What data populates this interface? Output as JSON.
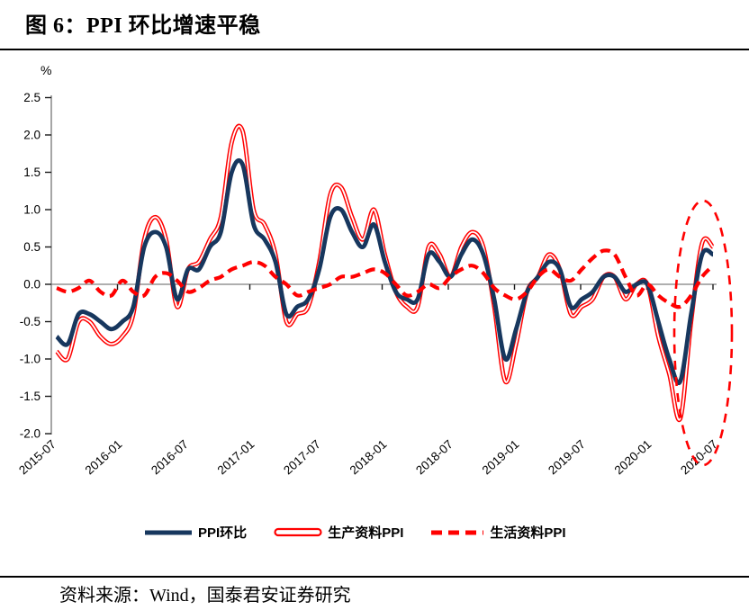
{
  "page": {
    "title": "图 6：PPI 环比增速平稳",
    "source": "资料来源：Wind，国泰君安证券研究"
  },
  "colors": {
    "ppi_line": "#17375E",
    "producer_line": "#FF0000",
    "consumer_line": "#FF0000",
    "axis": "#7F7F7F",
    "tick": "#1a1a1a",
    "text": "#000000",
    "highlight": "#FF0000"
  },
  "chart_data": {
    "type": "line",
    "title": "图 6：PPI 环比增速平稳",
    "unit_label": "%",
    "ylim": [
      -2.0,
      2.5
    ],
    "y_ticks": [
      "2.5",
      "2.0",
      "1.5",
      "1.0",
      "0.5",
      "0.0",
      "-0.5",
      "-1.0",
      "-1.5",
      "-2.0"
    ],
    "x_tick_labels": [
      "2015-07",
      "2016-01",
      "2016-07",
      "2017-01",
      "2017-07",
      "2018-01",
      "2018-07",
      "2019-01",
      "2019-07",
      "2020-01",
      "2020-07"
    ],
    "grid": "zero-line-only",
    "legend_position": "bottom",
    "x": [
      "2015-07",
      "2015-08",
      "2015-09",
      "2015-10",
      "2015-11",
      "2015-12",
      "2016-01",
      "2016-02",
      "2016-03",
      "2016-04",
      "2016-05",
      "2016-06",
      "2016-07",
      "2016-08",
      "2016-09",
      "2016-10",
      "2016-11",
      "2016-12",
      "2017-01",
      "2017-02",
      "2017-03",
      "2017-04",
      "2017-05",
      "2017-06",
      "2017-07",
      "2017-08",
      "2017-09",
      "2017-10",
      "2017-11",
      "2017-12",
      "2018-01",
      "2018-02",
      "2018-03",
      "2018-04",
      "2018-05",
      "2018-06",
      "2018-07",
      "2018-08",
      "2018-09",
      "2018-10",
      "2018-11",
      "2018-12",
      "2019-01",
      "2019-02",
      "2019-03",
      "2019-04",
      "2019-05",
      "2019-06",
      "2019-07",
      "2019-08",
      "2019-09",
      "2019-10",
      "2019-11",
      "2019-12",
      "2020-01",
      "2020-02",
      "2020-03",
      "2020-04",
      "2020-05",
      "2020-06",
      "2020-07"
    ],
    "series": [
      {
        "name": "PPI环比",
        "style": "solid-thick",
        "color": "#17375E",
        "values": [
          -0.7,
          -0.8,
          -0.4,
          -0.4,
          -0.5,
          -0.6,
          -0.5,
          -0.3,
          0.5,
          0.7,
          0.5,
          -0.2,
          0.2,
          0.2,
          0.5,
          0.7,
          1.5,
          1.6,
          0.8,
          0.6,
          0.3,
          -0.4,
          -0.3,
          -0.2,
          0.2,
          0.9,
          1.0,
          0.7,
          0.5,
          0.8,
          0.3,
          -0.1,
          -0.2,
          -0.2,
          0.4,
          0.3,
          0.1,
          0.4,
          0.6,
          0.4,
          -0.2,
          -1.0,
          -0.6,
          -0.1,
          0.1,
          0.3,
          0.2,
          -0.3,
          -0.2,
          -0.1,
          0.1,
          0.1,
          -0.1,
          0.0,
          0.0,
          -0.5,
          -1.0,
          -1.3,
          -0.4,
          0.4,
          0.4
        ]
      },
      {
        "name": "生产资料PPI",
        "style": "double-hollow",
        "color": "#FF0000",
        "values": [
          -0.9,
          -1.0,
          -0.5,
          -0.5,
          -0.7,
          -0.8,
          -0.7,
          -0.4,
          0.6,
          0.9,
          0.6,
          -0.3,
          0.2,
          0.3,
          0.6,
          0.9,
          1.9,
          2.05,
          1.0,
          0.8,
          0.4,
          -0.5,
          -0.4,
          -0.3,
          0.3,
          1.2,
          1.3,
          0.9,
          0.6,
          1.0,
          0.4,
          -0.1,
          -0.3,
          -0.3,
          0.5,
          0.4,
          0.1,
          0.5,
          0.7,
          0.5,
          -0.3,
          -1.3,
          -0.8,
          -0.1,
          0.1,
          0.4,
          0.2,
          -0.4,
          -0.3,
          -0.2,
          0.1,
          0.1,
          -0.2,
          0.0,
          0.0,
          -0.7,
          -1.2,
          -1.8,
          -0.5,
          0.55,
          0.5
        ]
      },
      {
        "name": "生活资料PPI",
        "style": "dashed-thick",
        "color": "#FF0000",
        "values": [
          -0.05,
          -0.1,
          -0.05,
          0.05,
          -0.1,
          -0.15,
          0.05,
          -0.1,
          -0.15,
          0.1,
          0.15,
          0.05,
          -0.1,
          -0.05,
          0.05,
          0.1,
          0.2,
          0.25,
          0.3,
          0.25,
          0.1,
          0.0,
          -0.15,
          -0.1,
          -0.05,
          0.0,
          0.1,
          0.1,
          0.15,
          0.2,
          0.15,
          0.0,
          -0.15,
          -0.1,
          0.0,
          -0.05,
          0.1,
          0.2,
          0.25,
          0.15,
          -0.05,
          -0.15,
          -0.2,
          -0.1,
          0.1,
          0.2,
          0.1,
          0.05,
          0.2,
          0.35,
          0.45,
          0.4,
          0.1,
          -0.15,
          0.0,
          -0.15,
          -0.25,
          -0.3,
          -0.15,
          0.1,
          0.25
        ]
      }
    ],
    "annotation": {
      "shape": "dashed-ellipse",
      "color": "#FF0000",
      "highlight_months": [
        "2020-04",
        "2020-05",
        "2020-06",
        "2020-07"
      ]
    }
  },
  "legend": {
    "item1": "PPI环比",
    "item2": "生产资料PPI",
    "item3": "生活资料PPI"
  }
}
